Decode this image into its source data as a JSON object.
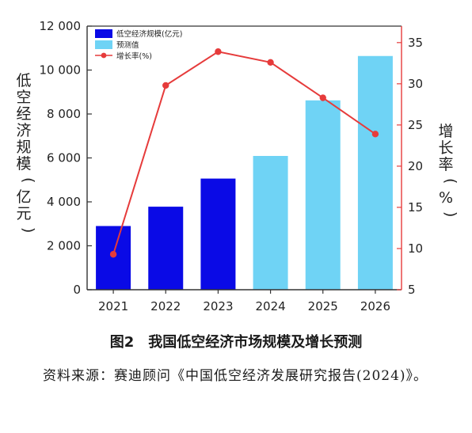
{
  "chart_data": {
    "type": "bar+line",
    "categories": [
      "2021",
      "2022",
      "2023",
      "2024",
      "2025",
      "2026"
    ],
    "bar_values": [
      2900,
      3780,
      5060,
      6090,
      8620,
      10640
    ],
    "bar_series": [
      {
        "name": "低空经济规模(亿元)",
        "color": "#0a0ae6",
        "applies_to": [
          "2021",
          "2022",
          "2023"
        ]
      },
      {
        "name": "预测值",
        "color": "#6fd3f5",
        "applies_to": [
          "2024",
          "2025",
          "2026"
        ]
      }
    ],
    "line_series": {
      "name": "增长率(%)",
      "color": "#e63b3b",
      "values": [
        9.3,
        29.8,
        33.9,
        32.6,
        28.3,
        23.9
      ]
    },
    "ylabel": "低空经济规模(亿元)",
    "y2label": "增长率(%)",
    "ylim": [
      0,
      12000
    ],
    "y2lim": [
      5,
      37
    ],
    "y_ticks": [
      "0",
      "2 000",
      "4 000",
      "6 000",
      "8 000",
      "10 000",
      "12 000"
    ],
    "y2_ticks": [
      "5",
      "10",
      "15",
      "20",
      "25",
      "30",
      "35"
    ],
    "legend_position": "top-left"
  },
  "caption": "图2　我国低空经济市场规模及增长预测",
  "source_text": "资料来源：赛迪顾问《中国低空经济发展研究报告(2024)》。"
}
